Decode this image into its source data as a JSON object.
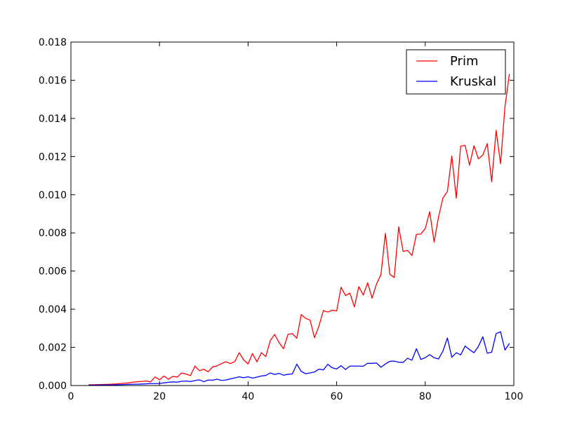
{
  "chart_data": {
    "type": "line",
    "title": "",
    "xlabel": "",
    "ylabel": "",
    "xlim": [
      0,
      100
    ],
    "ylim": [
      0,
      0.018
    ],
    "xticks": [
      "0",
      "20",
      "40",
      "60",
      "80",
      "100"
    ],
    "yticks": [
      "0.000",
      "0.002",
      "0.004",
      "0.006",
      "0.008",
      "0.010",
      "0.012",
      "0.014",
      "0.016",
      "0.018"
    ],
    "grid": false,
    "legend": {
      "position": "top-right",
      "entries": [
        "Prim",
        "Kruskal"
      ]
    },
    "x": [
      4,
      5,
      6,
      7,
      8,
      9,
      10,
      11,
      12,
      13,
      14,
      15,
      16,
      17,
      18,
      19,
      20,
      21,
      22,
      23,
      24,
      25,
      26,
      27,
      28,
      29,
      30,
      31,
      32,
      33,
      34,
      35,
      36,
      37,
      38,
      39,
      40,
      41,
      42,
      43,
      44,
      45,
      46,
      47,
      48,
      49,
      50,
      51,
      52,
      53,
      54,
      55,
      56,
      57,
      58,
      59,
      60,
      61,
      62,
      63,
      64,
      65,
      66,
      67,
      68,
      69,
      70,
      71,
      72,
      73,
      74,
      75,
      76,
      77,
      78,
      79,
      80,
      81,
      82,
      83,
      84,
      85,
      86,
      87,
      88,
      89,
      90,
      91,
      92,
      93,
      94,
      95,
      96,
      97,
      98,
      99
    ],
    "series": [
      {
        "name": "Prim",
        "color": "#ff0000",
        "values": [
          4e-05,
          4e-05,
          5e-05,
          5e-05,
          6e-05,
          7e-05,
          8e-05,
          0.0001,
          0.00012,
          0.00014,
          0.00018,
          0.0002,
          0.00021,
          0.00024,
          0.00019,
          0.00045,
          0.0003,
          0.0005,
          0.00033,
          0.00048,
          0.00044,
          0.00066,
          0.0006,
          0.00052,
          0.00102,
          0.00078,
          0.00085,
          0.00072,
          0.00098,
          0.00103,
          0.00115,
          0.00125,
          0.00115,
          0.00126,
          0.00172,
          0.00135,
          0.00113,
          0.00168,
          0.00124,
          0.00172,
          0.00152,
          0.00235,
          0.00268,
          0.00225,
          0.00193,
          0.00268,
          0.00272,
          0.00248,
          0.00372,
          0.00352,
          0.00343,
          0.00251,
          0.00312,
          0.00393,
          0.00385,
          0.00395,
          0.00391,
          0.00515,
          0.00472,
          0.00484,
          0.00412,
          0.00518,
          0.00474,
          0.00538,
          0.00458,
          0.00532,
          0.00582,
          0.00798,
          0.00583,
          0.00566,
          0.00832,
          0.00703,
          0.00708,
          0.00682,
          0.00792,
          0.00794,
          0.00823,
          0.00911,
          0.00752,
          0.00884,
          0.00983,
          0.01017,
          0.01203,
          0.00982,
          0.01255,
          0.01258,
          0.01155,
          0.01257,
          0.01188,
          0.01208,
          0.01268,
          0.01068,
          0.01337,
          0.01162,
          0.01462,
          0.01633
        ]
      },
      {
        "name": "Kruskal",
        "color": "#0000ff",
        "values": [
          2e-05,
          2e-05,
          2e-05,
          3e-05,
          3e-05,
          3e-05,
          4e-05,
          4e-05,
          5e-05,
          6e-05,
          7e-05,
          7e-05,
          8e-05,
          9e-05,
          0.0001,
          0.0001,
          0.00011,
          0.00014,
          0.00017,
          0.00019,
          0.00018,
          0.00022,
          0.00024,
          0.00021,
          0.00026,
          0.0003,
          0.0002,
          0.00029,
          0.00028,
          0.00033,
          0.00027,
          0.00029,
          0.00035,
          0.0004,
          0.00046,
          0.00041,
          0.00046,
          0.00039,
          0.00044,
          0.0005,
          0.00053,
          0.00066,
          0.00058,
          0.00064,
          0.00054,
          0.00059,
          0.00061,
          0.00112,
          0.00074,
          0.00062,
          0.00066,
          0.00071,
          0.00086,
          0.00082,
          0.00111,
          0.00093,
          0.00087,
          0.00104,
          0.00084,
          0.00102,
          0.00102,
          0.00102,
          0.00101,
          0.00117,
          0.00116,
          0.00118,
          0.00096,
          0.00113,
          0.00127,
          0.00128,
          0.00122,
          0.00121,
          0.00143,
          0.00133,
          0.00193,
          0.00137,
          0.00146,
          0.00162,
          0.00146,
          0.00139,
          0.00181,
          0.00249,
          0.00148,
          0.00172,
          0.00161,
          0.00207,
          0.00188,
          0.00172,
          0.00205,
          0.00256,
          0.00169,
          0.00175,
          0.00272,
          0.00282,
          0.00186,
          0.00221
        ]
      }
    ]
  }
}
